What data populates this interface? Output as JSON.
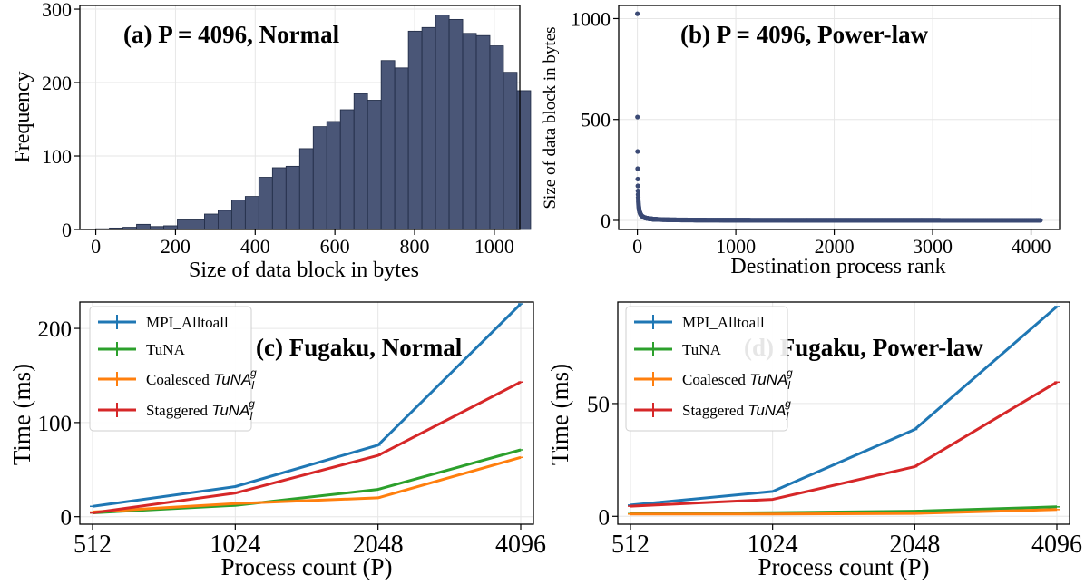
{
  "figure_domain": "multi-panel chart",
  "colors": {
    "hist_fill": "#4a5677",
    "hist_edge": "#1f2a44",
    "scatter": "#3b4a75",
    "mpi": "#1f77b4",
    "tuna": "#2ca02c",
    "coalesced": "#ff7f0e",
    "staggered": "#d62728",
    "grid": "#e6e6e6"
  },
  "chart_data": [
    {
      "id": "a",
      "type": "bar",
      "title": "(a) P = 4096, Normal",
      "xlabel": "Size of data block in bytes",
      "ylabel": "Frequency",
      "xlim": [
        -40,
        1064
      ],
      "ylim": [
        0,
        305
      ],
      "xticks": [
        0,
        200,
        400,
        600,
        800,
        1000
      ],
      "yticks": [
        0,
        100,
        200,
        300
      ],
      "bin_start": 0,
      "bin_width": 34.1,
      "values": [
        1,
        2,
        3,
        7,
        4,
        5,
        13,
        13,
        21,
        26,
        40,
        45,
        71,
        84,
        86,
        110,
        140,
        147,
        163,
        185,
        176,
        230,
        220,
        270,
        275,
        292,
        286,
        267,
        264,
        250,
        214,
        189
      ]
    },
    {
      "id": "b",
      "type": "scatter",
      "title": "(b) P = 4096, Power-law",
      "xlabel": "Destination process rank",
      "ylabel": "Size of data block in bytes",
      "xlim": [
        -190,
        4290
      ],
      "ylim": [
        -45,
        1065
      ],
      "xticks": [
        0,
        1000,
        2000,
        3000,
        4000
      ],
      "yticks": [
        0,
        500,
        1000
      ],
      "model": "1024 / (rank + 1)",
      "n_points": 4096
    },
    {
      "id": "c",
      "type": "line",
      "title": "(c) Fugaku, Normal",
      "xlabel": "Process count (P)",
      "ylabel": "Time (ms)",
      "categories": [
        "512",
        "1024",
        "2048",
        "4096"
      ],
      "ylim": [
        -8,
        228
      ],
      "yticks": [
        0,
        100,
        200
      ],
      "series": [
        {
          "name": "MPI_Alltoall",
          "color_key": "mpi",
          "values": [
            11,
            32,
            76,
            226
          ]
        },
        {
          "name": "TuNA",
          "color_key": "tuna",
          "values": [
            4,
            12,
            29,
            71
          ]
        },
        {
          "name": "Coalesced",
          "color_key": "coalesced",
          "values": [
            5,
            14,
            20,
            63
          ]
        },
        {
          "name": "Staggered",
          "color_key": "staggered",
          "values": [
            4,
            25,
            65,
            143
          ]
        }
      ]
    },
    {
      "id": "d",
      "type": "line",
      "title": "(d) Fugaku, Power-law",
      "xlabel": "Process count (P)",
      "ylabel": "Time (ms)",
      "categories": [
        "512",
        "1024",
        "2048",
        "4096"
      ],
      "ylim": [
        -3.5,
        95
      ],
      "yticks": [
        0,
        50
      ],
      "series": [
        {
          "name": "MPI_Alltoall",
          "color_key": "mpi",
          "values": [
            5,
            11,
            38.5,
            93
          ]
        },
        {
          "name": "TuNA",
          "color_key": "tuna",
          "values": [
            1.2,
            1.6,
            2.3,
            4.2
          ]
        },
        {
          "name": "Coalesced",
          "color_key": "coalesced",
          "values": [
            1,
            1,
            1.3,
            3
          ]
        },
        {
          "name": "Staggered",
          "color_key": "staggered",
          "values": [
            4.5,
            7.5,
            22,
            59.5
          ]
        }
      ]
    }
  ],
  "legend": {
    "mpi": "MPI_Alltoall",
    "tuna": "TuNA",
    "coalesced_prefix": "Coalesced",
    "staggered_prefix": "Staggered",
    "tuna_base": "TuNA",
    "tuna_sub": "l",
    "tuna_sup": "g"
  }
}
